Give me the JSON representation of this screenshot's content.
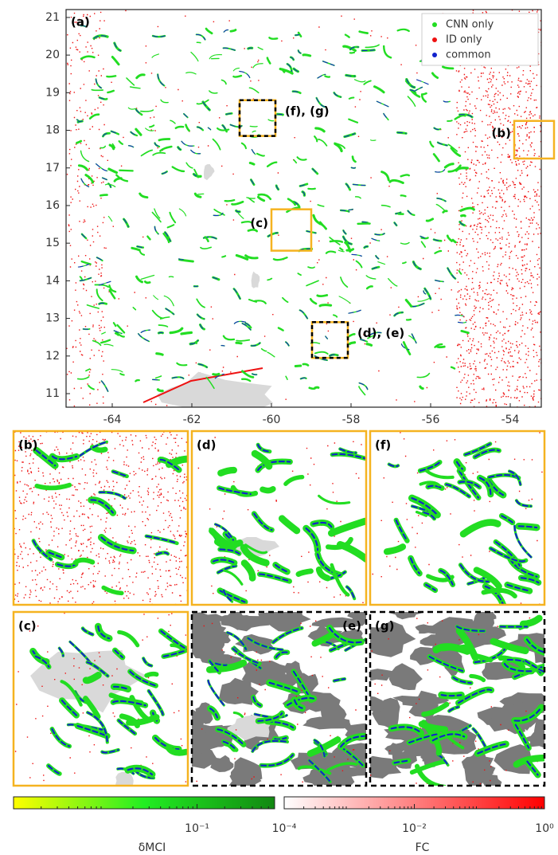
{
  "chart_data": [
    {
      "type": "map",
      "panel_label": "(a)",
      "xlim": [
        -65.16,
        -53.22
      ],
      "ylim": [
        10.64,
        21.21
      ],
      "xticks": [
        -64,
        -62,
        -60,
        -58,
        -56,
        -54
      ],
      "yticks": [
        11,
        12,
        13,
        14,
        15,
        16,
        17,
        18,
        19,
        20,
        21
      ],
      "legend": "upper right",
      "legend_entries": [
        {
          "name": "CNN only",
          "color": "#22dd22"
        },
        {
          "name": "ID only",
          "color": "#ee1111"
        },
        {
          "name": "common",
          "color": "#1122cc"
        }
      ],
      "regions": [
        {
          "label": "(f), (g)",
          "xlim": [
            -60.8,
            -59.9
          ],
          "ylim": [
            17.85,
            18.8
          ],
          "style": "dashed"
        },
        {
          "label": "(b)",
          "xlim": [
            -53.9,
            -52.9
          ],
          "ylim": [
            17.25,
            18.25
          ],
          "style": "solid"
        },
        {
          "label": "(c)",
          "xlim": [
            -60.0,
            -59.0
          ],
          "ylim": [
            14.8,
            15.9
          ],
          "style": "solid"
        },
        {
          "label": "(d), (e)",
          "xlim": [
            -58.98,
            -58.08
          ],
          "ylim": [
            11.95,
            12.9
          ],
          "style": "dashed"
        }
      ],
      "insets": [
        {
          "label": "(b)",
          "style": "solid"
        },
        {
          "label": "(d)",
          "style": "solid"
        },
        {
          "label": "(f)",
          "style": "solid"
        },
        {
          "label": "(c)",
          "style": "solid"
        },
        {
          "label": "(e)",
          "style": "dashed"
        },
        {
          "label": "(g)",
          "style": "dashed"
        }
      ]
    },
    {
      "type": "colorbar",
      "label": "δMCI",
      "scale": "log",
      "xlim": [
        0.001,
        0.7
      ],
      "xticks": [
        {
          "value": 0.1,
          "label": "10⁻¹"
        }
      ],
      "colors": [
        "#ffff00",
        "#22ee22",
        "#118811"
      ]
    },
    {
      "type": "colorbar",
      "label": "FC",
      "scale": "log",
      "xlim": [
        0.0001,
        1
      ],
      "xticks": [
        {
          "value": 0.0001,
          "label": "10⁻⁴"
        },
        {
          "value": 0.01,
          "label": "10⁻²"
        },
        {
          "value": 1,
          "label": "10⁰"
        }
      ],
      "colors": [
        "#ffffff",
        "#ff0000"
      ]
    }
  ]
}
